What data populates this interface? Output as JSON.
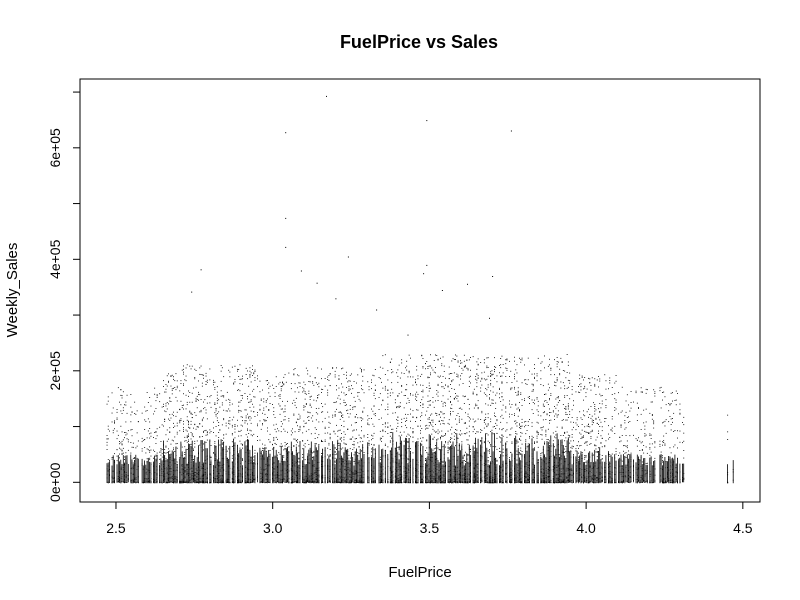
{
  "chart_data": {
    "type": "scatter",
    "title": "FuelPrice vs Sales",
    "xlabel": "FuelPrice",
    "ylabel": "Weekly_Sales",
    "xlim": [
      2.472,
      4.468
    ],
    "ylim": [
      -4989,
      693099
    ],
    "x_ticks": [
      {
        "value": 2.5,
        "label": "2.5"
      },
      {
        "value": 3.0,
        "label": "3.0"
      },
      {
        "value": 3.5,
        "label": "3.5"
      },
      {
        "value": 4.0,
        "label": "4.0"
      },
      {
        "value": 4.5,
        "label": "4.5"
      }
    ],
    "y_ticks": [
      {
        "value": 0,
        "label": "0e+00"
      },
      {
        "value": 100000,
        "label": ""
      },
      {
        "value": 200000,
        "label": "2e+05"
      },
      {
        "value": 300000,
        "label": ""
      },
      {
        "value": 400000,
        "label": "4e+05"
      },
      {
        "value": 500000,
        "label": ""
      },
      {
        "value": 600000,
        "label": "6e+05"
      },
      {
        "value": 700000,
        "label": ""
      }
    ],
    "grid": false,
    "legend": "none",
    "point_color": "#000000",
    "price_range": [
      2.472,
      4.468
    ],
    "sales_range": [
      -4989,
      693099
    ],
    "outliers": [
      {
        "x": 3.17,
        "y": 693099
      },
      {
        "x": 3.49,
        "y": 649770
      },
      {
        "x": 3.04,
        "y": 627962
      },
      {
        "x": 3.76,
        "y": 630999
      },
      {
        "x": 3.04,
        "y": 474330
      },
      {
        "x": 3.04,
        "y": 422306
      },
      {
        "x": 3.24,
        "y": 405000
      },
      {
        "x": 3.49,
        "y": 390000
      },
      {
        "x": 3.48,
        "y": 375000
      },
      {
        "x": 3.7,
        "y": 370000
      },
      {
        "x": 2.77,
        "y": 382000
      },
      {
        "x": 3.62,
        "y": 356000
      },
      {
        "x": 3.14,
        "y": 358000
      },
      {
        "x": 3.54,
        "y": 345000
      },
      {
        "x": 2.74,
        "y": 342000
      },
      {
        "x": 3.09,
        "y": 380000
      },
      {
        "x": 3.2,
        "y": 330000
      },
      {
        "x": 3.33,
        "y": 310000
      },
      {
        "x": 3.69,
        "y": 295000
      },
      {
        "x": 3.43,
        "y": 265000
      }
    ]
  }
}
